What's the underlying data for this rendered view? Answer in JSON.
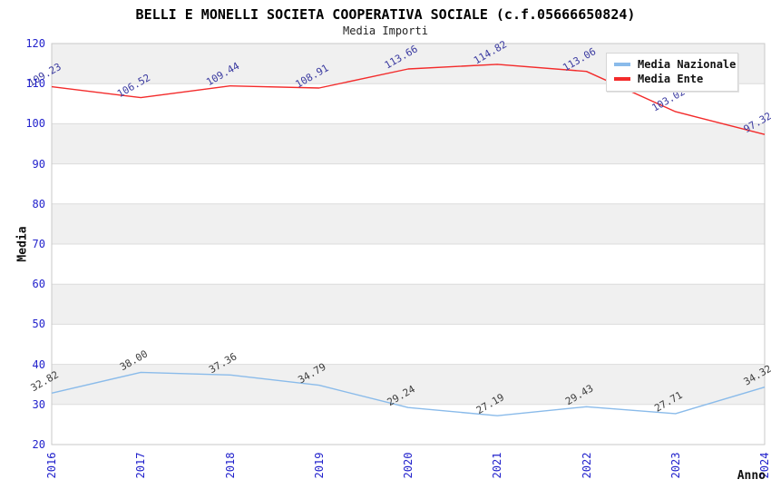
{
  "chart_data": {
    "type": "line",
    "title": "BELLI E MONELLI SOCIETA COOPERATIVA SOCIALE (c.f.05666650824)",
    "subtitle": "Media Importi",
    "xlabel": "Anno",
    "ylabel": "Media",
    "categories": [
      "2016",
      "2017",
      "2018",
      "2019",
      "2020",
      "2021",
      "2022",
      "2023",
      "2024"
    ],
    "series": [
      {
        "name": "Media Nazionale",
        "color": "#8abbea",
        "label_color": "#3d3d3d",
        "values": [
          32.82,
          38.0,
          37.36,
          34.79,
          29.24,
          27.19,
          29.43,
          27.71,
          34.32
        ]
      },
      {
        "name": "Media Ente",
        "color": "#f32b2b",
        "label_color": "#3a3aa0",
        "values": [
          109.23,
          106.52,
          109.44,
          108.91,
          113.66,
          114.82,
          113.06,
          103.02,
          97.32
        ]
      }
    ],
    "ylim": [
      20,
      120
    ],
    "yticks": [
      20,
      30,
      40,
      50,
      60,
      70,
      80,
      90,
      100,
      110,
      120
    ],
    "grid": true,
    "legend_position": "top-right",
    "band_colors": [
      "#f0f0f0",
      "#ffffff"
    ],
    "gridline_color": "#dcdcdc",
    "plot_border_color": "#c9c9c9",
    "axis_tick_color": "#2222cc"
  }
}
